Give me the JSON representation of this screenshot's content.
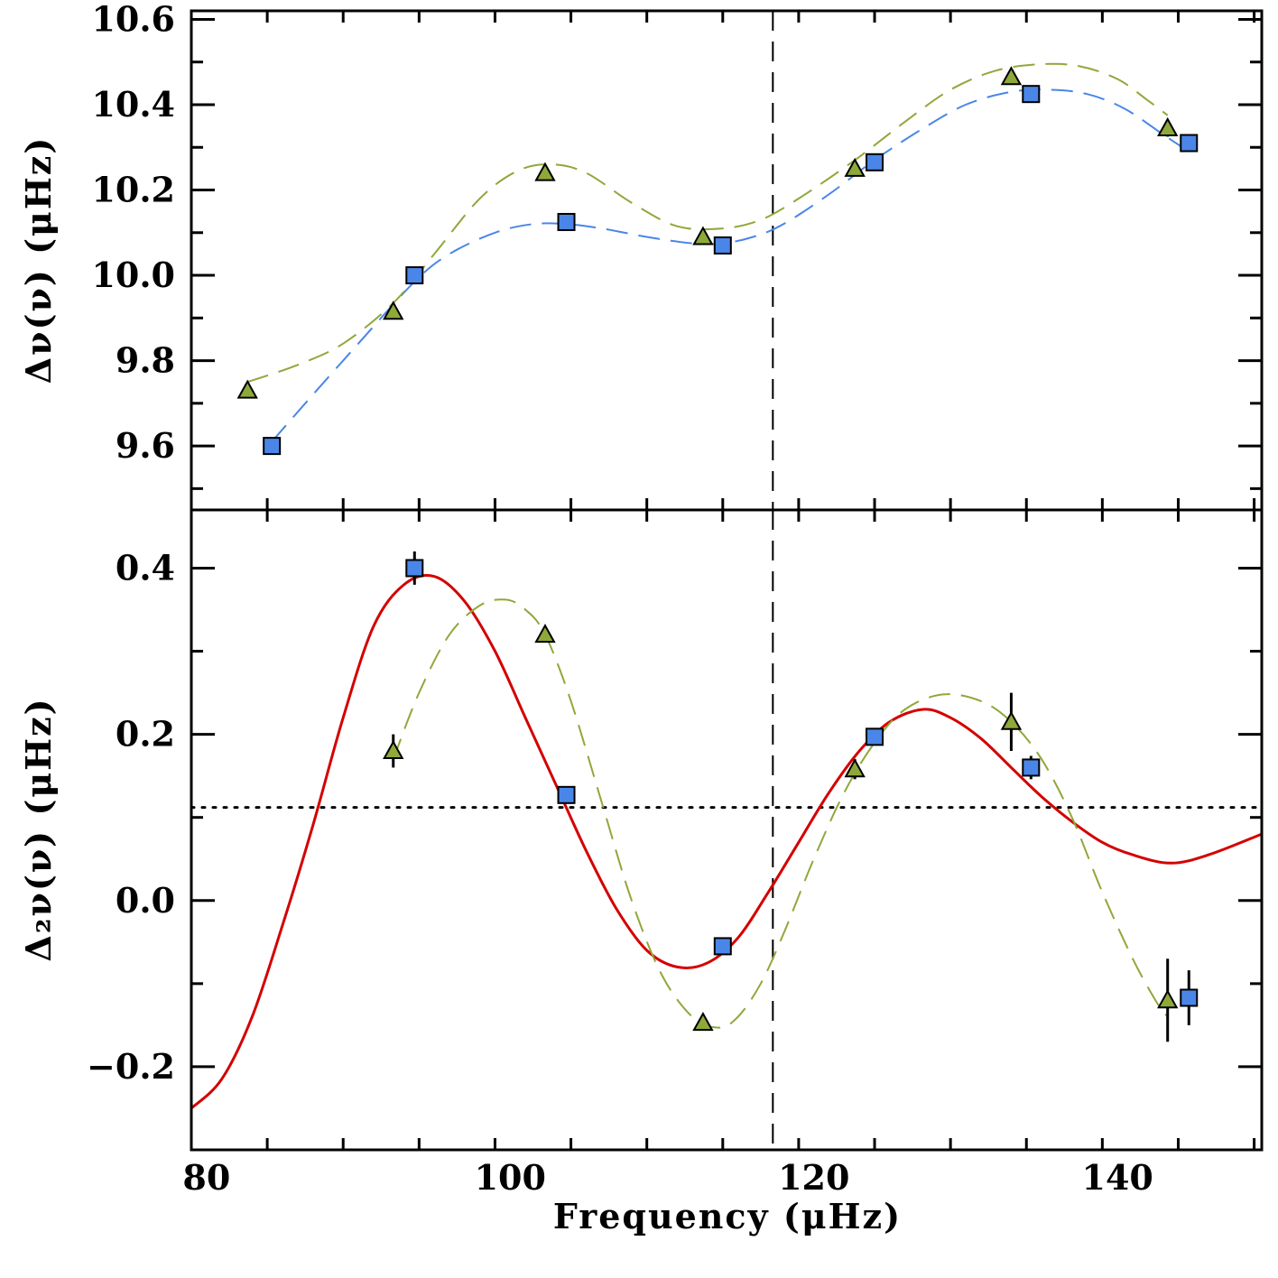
{
  "chart_data": [
    {
      "type": "scatter",
      "panel": "top",
      "ylabel": "Δν(ν) (μHz)",
      "xlim": [
        79,
        149.5
      ],
      "ylim": [
        9.45,
        10.62
      ],
      "x_ticks": [
        80,
        100,
        120,
        140
      ],
      "y_ticks": [
        9.6,
        9.8,
        10.0,
        10.2,
        10.4,
        10.6
      ],
      "y_tick_labels": [
        "9.6",
        "9.8",
        "10.0",
        "10.2",
        "10.4",
        "10.6"
      ],
      "vertical_line_x": 117.3,
      "series": [
        {
          "name": "squares",
          "marker": "square",
          "color": "#4a86e8",
          "x": [
            84.3,
            93.7,
            103.7,
            114.0,
            124.0,
            134.3,
            144.7
          ],
          "y": [
            9.6,
            10.0,
            10.125,
            10.07,
            10.265,
            10.425,
            10.31
          ],
          "yerr": [
            0.008,
            0.008,
            0.008,
            0.008,
            0.008,
            0.008,
            0.02
          ]
        },
        {
          "name": "triangles",
          "marker": "triangle",
          "color": "#8fa83a",
          "x": [
            82.7,
            92.3,
            102.3,
            112.7,
            122.7,
            133.0,
            143.3
          ],
          "y": [
            9.73,
            9.915,
            10.24,
            10.09,
            10.25,
            10.465,
            10.345
          ],
          "yerr": [
            0.008,
            0.008,
            0.008,
            0.008,
            0.008,
            0.008,
            0.02
          ]
        }
      ],
      "fits": [
        {
          "name": "squares-fit",
          "style": "dashed",
          "color": "#4a86e8",
          "x": [
            84.3,
            87,
            90,
            93.7,
            96,
            99,
            101.5,
            103.7,
            106,
            109,
            112,
            114,
            116,
            118,
            121,
            124,
            127,
            130,
            133,
            135.5,
            138,
            140.5,
            143,
            144.7
          ],
          "y": [
            9.61,
            9.72,
            9.84,
            9.985,
            10.05,
            10.1,
            10.12,
            10.12,
            10.11,
            10.09,
            10.075,
            10.075,
            10.09,
            10.12,
            10.19,
            10.27,
            10.34,
            10.4,
            10.43,
            10.435,
            10.425,
            10.39,
            10.33,
            10.29
          ]
        },
        {
          "name": "triangles-fit",
          "style": "dashed",
          "color": "#8fa83a",
          "x": [
            82.7,
            86,
            89,
            92.3,
            95,
            98,
            100.5,
            102.7,
            105,
            108,
            111,
            114,
            116.5,
            119,
            122.7,
            126,
            129,
            132,
            135,
            137.5,
            140,
            142,
            143.3
          ],
          "y": [
            9.75,
            9.79,
            9.84,
            9.935,
            10.05,
            10.18,
            10.245,
            10.26,
            10.24,
            10.17,
            10.115,
            10.11,
            10.13,
            10.18,
            10.27,
            10.36,
            10.435,
            10.48,
            10.495,
            10.49,
            10.46,
            10.41,
            10.375
          ]
        }
      ]
    },
    {
      "type": "scatter",
      "panel": "bottom",
      "ylabel": "Δ₂ν(ν) (μHz)",
      "xlabel": "Frequency (μHz)",
      "xlim": [
        79,
        149.5
      ],
      "ylim": [
        -0.3,
        0.47
      ],
      "x_ticks": [
        80,
        100,
        120,
        140
      ],
      "x_tick_labels": [
        "80",
        "100",
        "120",
        "140"
      ],
      "y_ticks": [
        -0.2,
        0.0,
        0.2,
        0.4
      ],
      "y_tick_labels": [
        "−0.2",
        "0.0",
        "0.2",
        "0.4"
      ],
      "vertical_line_x": 117.3,
      "horizontal_line_y": 0.112,
      "series": [
        {
          "name": "squares",
          "marker": "square",
          "color": "#4a86e8",
          "x": [
            93.7,
            103.7,
            114.0,
            124.0,
            134.3,
            144.7
          ],
          "y": [
            0.4,
            0.127,
            -0.055,
            0.197,
            0.16,
            -0.117
          ],
          "yerr": [
            0.02,
            0.008,
            0.008,
            0.008,
            0.014,
            0.033
          ]
        },
        {
          "name": "triangles",
          "marker": "triangle",
          "color": "#8fa83a",
          "x": [
            92.3,
            102.3,
            112.7,
            122.7,
            133.0,
            143.3
          ],
          "y": [
            0.18,
            0.32,
            -0.147,
            0.158,
            0.215,
            -0.12
          ],
          "yerr": [
            0.02,
            0.008,
            0.008,
            0.012,
            0.035,
            0.05
          ]
        }
      ],
      "fits": [
        {
          "name": "squares-fit",
          "style": "solid",
          "color": "#d40000",
          "x": [
            79,
            81,
            83,
            85,
            87,
            89,
            91,
            93,
            95,
            97,
            99,
            101,
            103,
            105,
            107,
            109,
            111,
            113,
            115,
            117,
            119,
            121,
            123,
            125,
            127.2,
            129,
            131,
            133,
            135,
            137,
            139,
            141,
            143.5,
            146,
            149.5
          ],
          "y": [
            -0.25,
            -0.215,
            -0.14,
            -0.03,
            0.09,
            0.22,
            0.33,
            0.38,
            0.39,
            0.36,
            0.3,
            0.22,
            0.14,
            0.06,
            -0.01,
            -0.06,
            -0.08,
            -0.075,
            -0.045,
            0.01,
            0.07,
            0.13,
            0.18,
            0.215,
            0.23,
            0.22,
            0.195,
            0.16,
            0.125,
            0.095,
            0.07,
            0.055,
            0.045,
            0.055,
            0.08
          ]
        },
        {
          "name": "triangles-fit",
          "style": "dashed",
          "color": "#8fa83a",
          "x": [
            92.3,
            94,
            96,
            98,
            99.7,
            101,
            102.3,
            104,
            106,
            108,
            110,
            112,
            113.7,
            115,
            116.5,
            118,
            120,
            122,
            124,
            126,
            128.5,
            131,
            133,
            135,
            137,
            139,
            141,
            142.5,
            143.3
          ],
          "y": [
            0.17,
            0.25,
            0.32,
            0.355,
            0.362,
            0.35,
            0.32,
            0.24,
            0.12,
            0.0,
            -0.09,
            -0.14,
            -0.153,
            -0.14,
            -0.1,
            -0.04,
            0.05,
            0.13,
            0.19,
            0.23,
            0.248,
            0.24,
            0.215,
            0.17,
            0.1,
            0.01,
            -0.07,
            -0.12,
            -0.14
          ]
        }
      ]
    }
  ]
}
